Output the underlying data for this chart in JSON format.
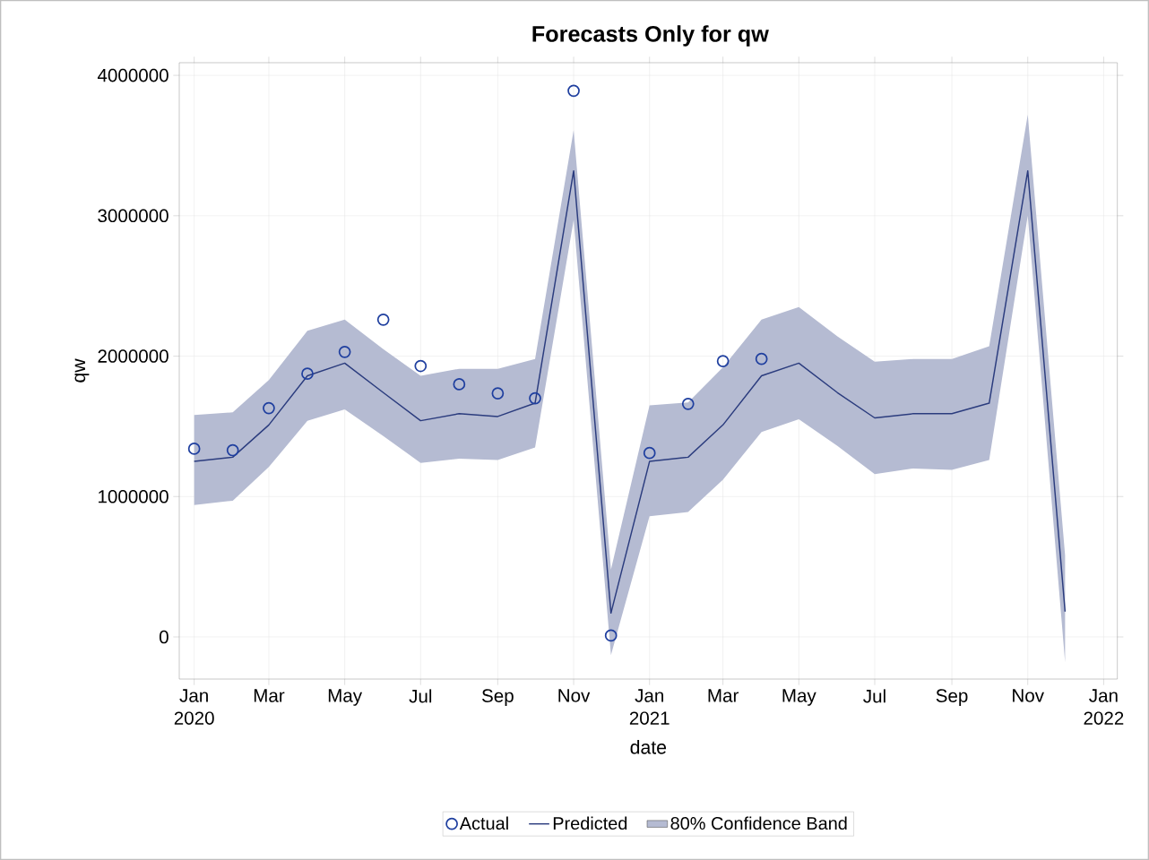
{
  "chart_data": {
    "type": "line",
    "title": "Forecasts Only for qw",
    "xlabel": "date",
    "ylabel": "qw",
    "x": [
      "2020-01",
      "2020-02",
      "2020-03",
      "2020-04",
      "2020-05",
      "2020-06",
      "2020-07",
      "2020-08",
      "2020-09",
      "2020-10",
      "2020-11",
      "2020-12",
      "2021-01",
      "2021-02",
      "2021-03",
      "2021-04",
      "2021-05",
      "2021-06",
      "2021-07",
      "2021-08",
      "2021-09",
      "2021-10",
      "2021-11",
      "2021-12"
    ],
    "series": [
      {
        "name": "Actual",
        "type": "scatter",
        "marker": "circle",
        "color": "#1f3f9f",
        "values": [
          1340000,
          1330000,
          1630000,
          1875000,
          2030000,
          2260000,
          1930000,
          1800000,
          1735000,
          1700000,
          3890000,
          10000,
          1310000,
          1660000,
          1965000,
          1980000,
          null,
          null,
          null,
          null,
          null,
          null,
          null,
          null
        ]
      },
      {
        "name": "Predicted",
        "line_style": "solid",
        "color": "#2b3c7e",
        "values": [
          1250000,
          1280000,
          1510000,
          1860000,
          1950000,
          1740000,
          1540000,
          1590000,
          1570000,
          1665000,
          3320000,
          170000,
          1250000,
          1280000,
          1510000,
          1860000,
          1950000,
          1740000,
          1560000,
          1590000,
          1590000,
          1665000,
          3320000,
          180000
        ],
        "lower": [
          940000,
          970000,
          1210000,
          1540000,
          1620000,
          1430000,
          1240000,
          1270000,
          1260000,
          1350000,
          2970000,
          -130000,
          860000,
          890000,
          1120000,
          1460000,
          1550000,
          1360000,
          1160000,
          1200000,
          1190000,
          1260000,
          3000000,
          -180000
        ],
        "upper": [
          1580000,
          1600000,
          1830000,
          2180000,
          2260000,
          2050000,
          1860000,
          1910000,
          1910000,
          1980000,
          3610000,
          480000,
          1650000,
          1670000,
          1920000,
          2260000,
          2350000,
          2140000,
          1960000,
          1980000,
          1980000,
          2070000,
          3720000,
          580000
        ]
      }
    ],
    "annotations": [
      "80% Confidence Band"
    ],
    "xlim": [
      "2019-12-20",
      "2022-01-12"
    ],
    "xticks": [
      {
        "value": "2020-01",
        "label": "Jan 2020"
      },
      {
        "value": "2020-03",
        "label": "Mar"
      },
      {
        "value": "2020-05",
        "label": "May"
      },
      {
        "value": "2020-07",
        "label": "Jul"
      },
      {
        "value": "2020-09",
        "label": "Sep"
      },
      {
        "value": "2020-11",
        "label": "Nov"
      },
      {
        "value": "2021-01",
        "label": "Jan 2021"
      },
      {
        "value": "2021-03",
        "label": "Mar"
      },
      {
        "value": "2021-05",
        "label": "May"
      },
      {
        "value": "2021-07",
        "label": "Jul"
      },
      {
        "value": "2021-09",
        "label": "Sep"
      },
      {
        "value": "2021-11",
        "label": "Nov"
      },
      {
        "value": "2022-01",
        "label": "Jan 2022"
      }
    ],
    "ylim": [
      -300000,
      4090000
    ],
    "yticks": [
      0,
      1000000,
      2000000,
      3000000,
      4000000
    ],
    "grid": true,
    "legend": "bottom"
  }
}
